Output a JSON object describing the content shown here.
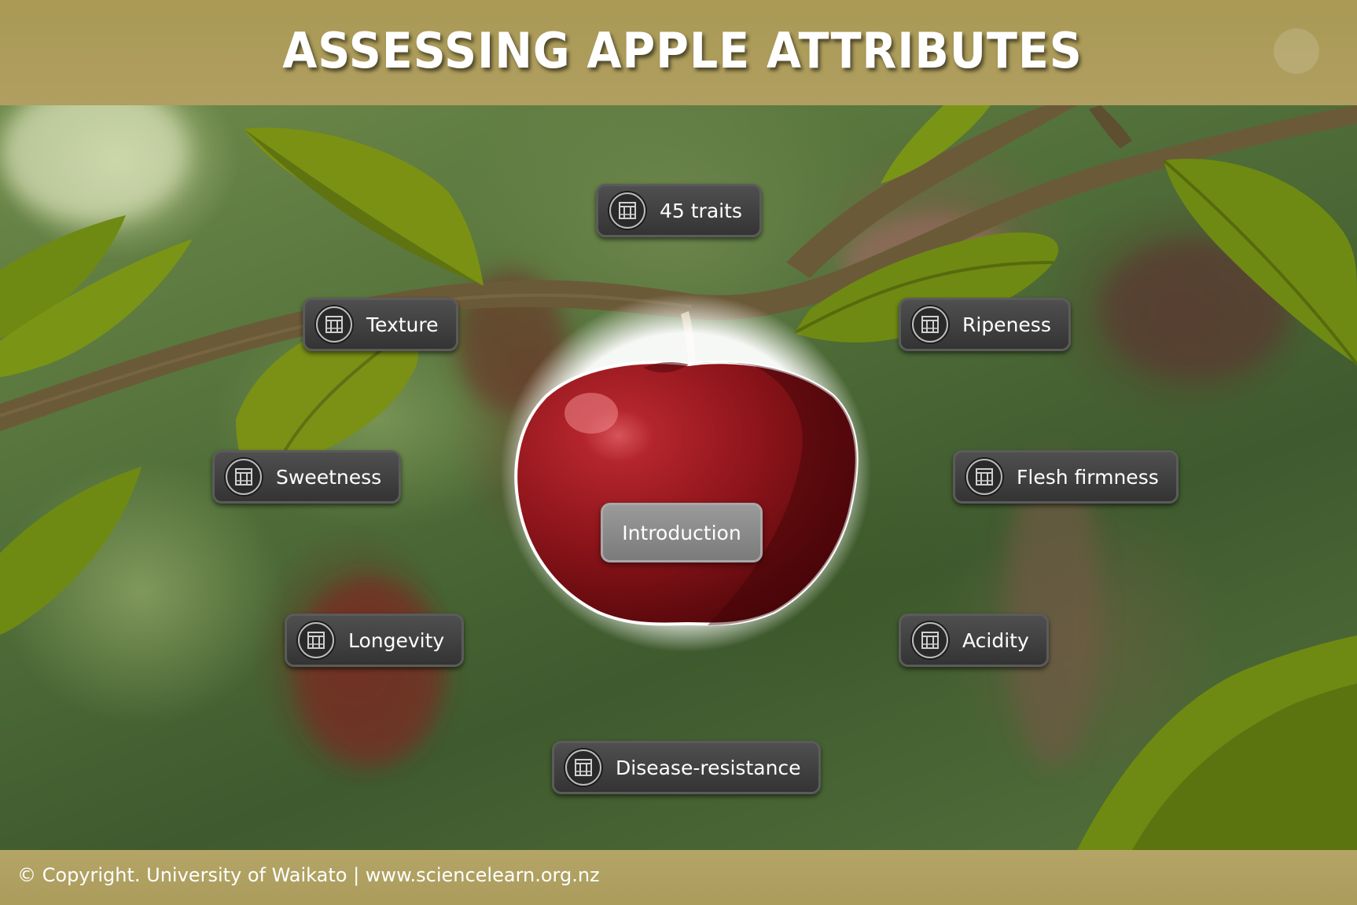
{
  "header": {
    "title": "ASSESSING APPLE ATTRIBUTES"
  },
  "traits": [
    {
      "id": "45-traits",
      "label": "45 traits",
      "icon": "document-icon"
    },
    {
      "id": "texture",
      "label": "Texture",
      "icon": "document-icon"
    },
    {
      "id": "ripeness",
      "label": "Ripeness",
      "icon": "document-icon"
    },
    {
      "id": "sweetness",
      "label": "Sweetness",
      "icon": "document-icon"
    },
    {
      "id": "flesh-firmness",
      "label": "Flesh firmness",
      "icon": "document-icon"
    },
    {
      "id": "longevity",
      "label": "Longevity",
      "icon": "document-icon"
    },
    {
      "id": "acidity",
      "label": "Acidity",
      "icon": "document-icon"
    },
    {
      "id": "disease-resistance",
      "label": "Disease-resistance",
      "icon": "document-icon"
    }
  ],
  "center": {
    "intro_label": "Introduction"
  },
  "footer": {
    "copyright": "© Copyright. University of Waikato | www.sciencelearn.org.nz"
  },
  "colors": {
    "header_bg": "#a99955",
    "footer_bg": "#b4a567",
    "button_bg": "#3f3f3f",
    "intro_button_bg": "#8a8a8a",
    "apple_red": "#8e1418",
    "leaf_green": "#6f8a14",
    "branch_brown": "#6b5a38"
  }
}
